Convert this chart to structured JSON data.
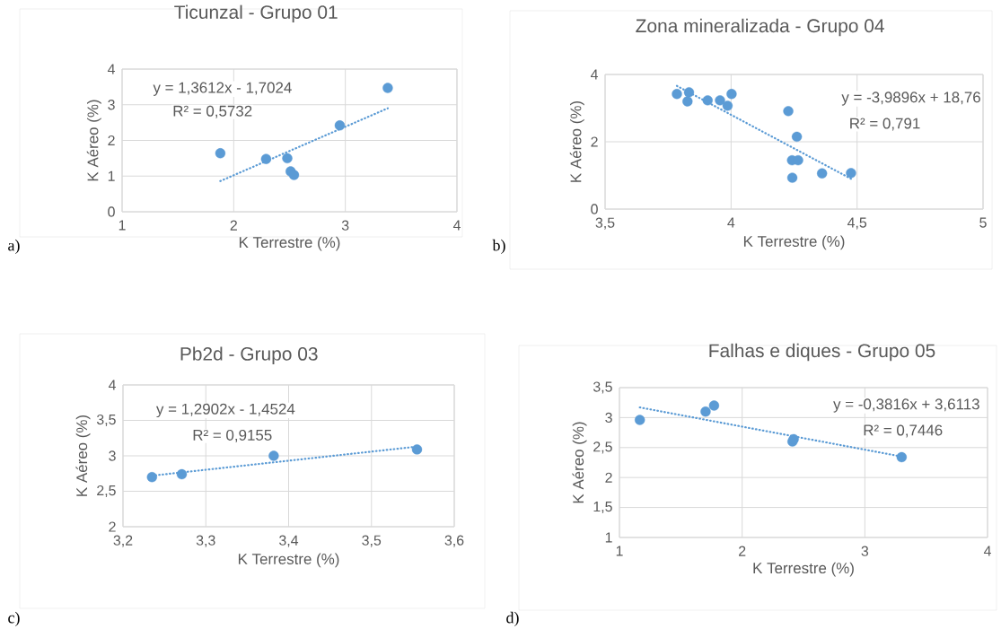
{
  "chart_data": [
    {
      "type": "scatter",
      "title": "Ticunzal - Grupo 01",
      "xlabel": "K Terrestre (%)",
      "ylabel": "K Aéreo (%)",
      "annotations": [
        "y = 1,3612x - 1,7024",
        "R² = 0,5732",
        "a)"
      ],
      "xlim": [
        1,
        4
      ],
      "ylim": [
        0,
        4
      ],
      "xticks": [
        1,
        2,
        3,
        4
      ],
      "yticks": [
        0,
        1,
        2,
        3,
        4
      ],
      "grid": true,
      "marker": "circle",
      "series": [
        {
          "color": "#5b9bd5",
          "x": [
            1.88,
            2.29,
            2.48,
            2.51,
            2.54,
            2.95,
            3.38
          ],
          "values": [
            1.64,
            1.48,
            1.5,
            1.13,
            1.03,
            2.42,
            3.47
          ]
        },
        {
          "type": "line",
          "color": "#5b9bd5",
          "line_style": "dotted",
          "marker": "none",
          "x": [
            1.88,
            3.38
          ],
          "values": [
            0.86,
            2.9
          ]
        }
      ]
    },
    {
      "type": "scatter",
      "title": "Zona mineralizada -  Grupo 04",
      "xlabel": "K Terrestre (%)",
      "ylabel": "K Aéreo (%)",
      "annotations": [
        "y = -3,9896x + 18,76",
        "R² = 0,791",
        "b)"
      ],
      "xlim": [
        3.5,
        5
      ],
      "ylim": [
        0,
        4
      ],
      "xticks": [
        {
          "value": 3.5,
          "label": "3,5"
        },
        4,
        {
          "value": 4.5,
          "label": "4,5"
        },
        5
      ],
      "yticks": [
        0,
        2,
        4
      ],
      "grid": true,
      "marker": "circle",
      "series": [
        {
          "color": "#5b9bd5",
          "x": [
            3.785,
            3.833,
            3.827,
            3.907,
            3.956,
            3.986,
            4.002,
            4.227,
            4.261,
            4.242,
            4.266,
            4.243,
            4.361,
            4.476
          ],
          "values": [
            3.42,
            3.47,
            3.2,
            3.23,
            3.23,
            3.07,
            3.42,
            2.91,
            2.15,
            1.45,
            1.45,
            0.93,
            1.06,
            1.07
          ]
        },
        {
          "type": "line",
          "color": "#5b9bd5",
          "line_style": "dotted",
          "marker": "none",
          "x": [
            3.785,
            4.476
          ],
          "values": [
            3.66,
            0.9
          ]
        }
      ]
    },
    {
      "type": "scatter",
      "title": "Pb2d - Grupo 03",
      "xlabel": "K Terrestre (%)",
      "ylabel": "K Aéreo (%)",
      "annotations": [
        "y = 1,2902x - 1,4524",
        "R² = 0,9155",
        "c)"
      ],
      "xlim": [
        3.2,
        3.6
      ],
      "ylim": [
        2,
        4
      ],
      "xticks": [
        {
          "value": 3.2,
          "label": "3,2"
        },
        {
          "value": 3.3,
          "label": "3,3"
        },
        {
          "value": 3.4,
          "label": "3,4"
        },
        {
          "value": 3.5,
          "label": "3,5"
        },
        {
          "value": 3.6,
          "label": "3,6"
        }
      ],
      "yticks": [
        2,
        {
          "value": 2.5,
          "label": "2,5"
        },
        3,
        {
          "value": 3.5,
          "label": "3,5"
        },
        4
      ],
      "grid": true,
      "marker": "circle",
      "series": [
        {
          "color": "#5b9bd5",
          "x": [
            3.235,
            3.271,
            3.382,
            3.555
          ],
          "values": [
            2.7,
            2.74,
            3.0,
            3.09
          ]
        },
        {
          "type": "line",
          "color": "#5b9bd5",
          "line_style": "dotted",
          "marker": "none",
          "x": [
            3.235,
            3.555
          ],
          "values": [
            2.72,
            3.13
          ]
        }
      ]
    },
    {
      "type": "scatter",
      "title": "Falhas e diques - Grupo 05",
      "xlabel": "K Terrestre (%)",
      "ylabel": "K Aéreo (%)",
      "annotations": [
        "y = -0,3816x + 3,6113",
        "R² = 0,7446",
        "d)"
      ],
      "xlim": [
        1,
        4
      ],
      "ylim": [
        1,
        3.5
      ],
      "xticks": [
        1,
        2,
        3,
        4
      ],
      "yticks": [
        1,
        {
          "value": 1.5,
          "label": "1,5"
        },
        2,
        {
          "value": 2.5,
          "label": "2,5"
        },
        3,
        {
          "value": 3.5,
          "label": "3,5"
        }
      ],
      "grid": true,
      "marker": "circle",
      "series": [
        {
          "color": "#5b9bd5",
          "x": [
            1.166,
            1.702,
            1.771,
            2.41,
            2.42,
            3.3
          ],
          "values": [
            2.96,
            3.1,
            3.2,
            2.6,
            2.64,
            2.34
          ]
        },
        {
          "type": "line",
          "color": "#5b9bd5",
          "line_style": "dotted",
          "marker": "none",
          "x": [
            1.166,
            3.3
          ],
          "values": [
            3.17,
            2.35
          ]
        }
      ]
    }
  ]
}
